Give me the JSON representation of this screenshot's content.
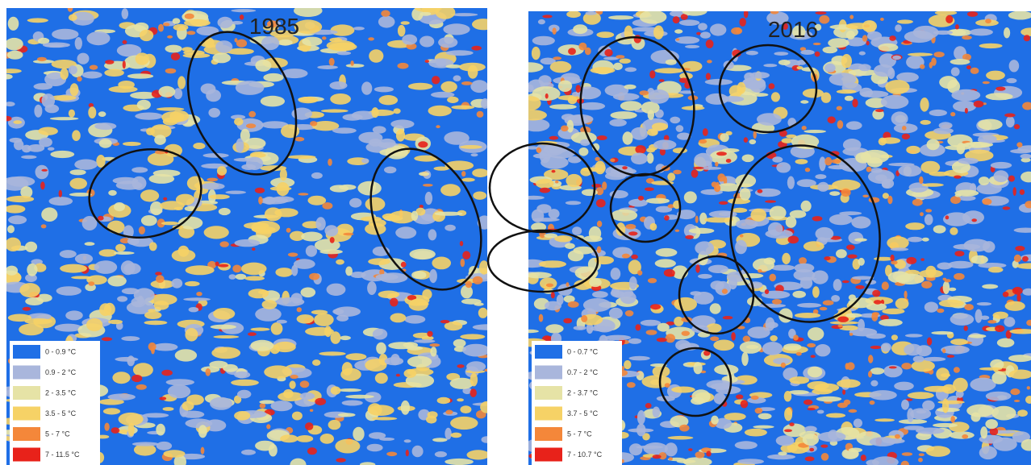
{
  "maps": [
    {
      "title": "1985",
      "legend": [
        {
          "label": "0 - 0.9 °C",
          "color": "#1f6fe6"
        },
        {
          "label": "0.9 - 2 °C",
          "color": "#a9b6dc"
        },
        {
          "label": "2 - 3.5 °C",
          "color": "#e6e3a6"
        },
        {
          "label": "3.5 - 5 °C",
          "color": "#f6d266"
        },
        {
          "label": "5 - 7 °C",
          "color": "#f4873a"
        },
        {
          "label": "7 - 11.5 °C",
          "color": "#e8221a"
        }
      ]
    },
    {
      "title": "2016",
      "legend": [
        {
          "label": "0 - 0.7 °C",
          "color": "#1f6fe6"
        },
        {
          "label": "0.7 - 2 °C",
          "color": "#a9b6dc"
        },
        {
          "label": "2 - 3.7 °C",
          "color": "#e6e3a6"
        },
        {
          "label": "3.7 - 5 °C",
          "color": "#f6d266"
        },
        {
          "label": "5 - 7 °C",
          "color": "#f4873a"
        },
        {
          "label": "7 - 10.7 °C",
          "color": "#e8221a"
        }
      ]
    }
  ]
}
